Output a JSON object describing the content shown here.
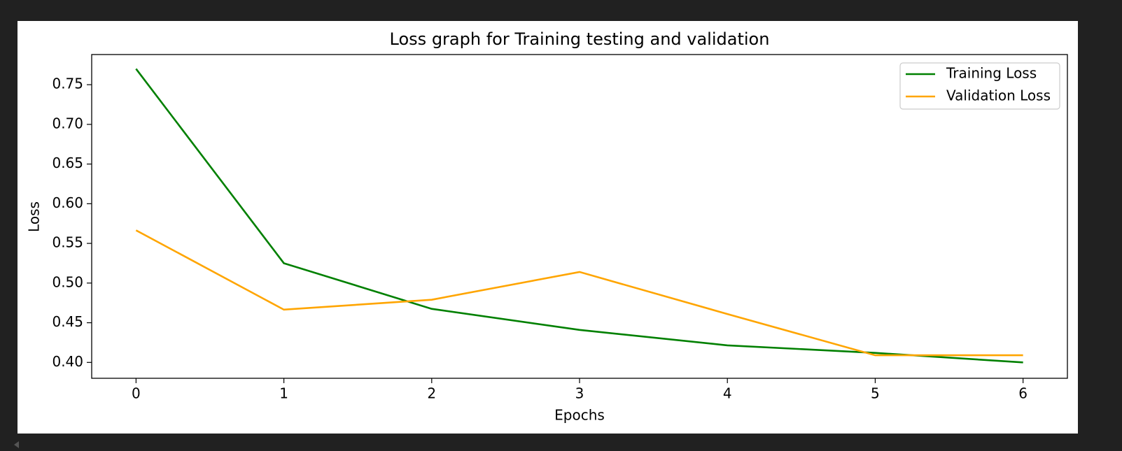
{
  "chart_data": {
    "type": "line",
    "title": "Loss graph for Training testing and validation",
    "xlabel": "Epochs",
    "ylabel": "Loss",
    "x": [
      0,
      1,
      2,
      3,
      4,
      5,
      6
    ],
    "series": [
      {
        "name": "Training Loss",
        "color": "#008000",
        "values": [
          0.77,
          0.525,
          0.4675,
          0.441,
          0.4215,
          0.412,
          0.4
        ]
      },
      {
        "name": "Validation Loss",
        "color": "#ffa500",
        "values": [
          0.5665,
          0.4665,
          0.479,
          0.514,
          0.461,
          0.409,
          0.409
        ]
      }
    ],
    "xlim": [
      -0.3,
      6.3
    ],
    "ylim": [
      0.38,
      0.788
    ],
    "xticks": [
      0,
      1,
      2,
      3,
      4,
      5,
      6
    ],
    "yticks": [
      {
        "value": 0.4,
        "label": "0.40"
      },
      0.45,
      {
        "value": 0.5,
        "label": "0.50"
      },
      0.55,
      {
        "value": 0.6,
        "label": "0.60"
      },
      0.65,
      {
        "value": 0.7,
        "label": "0.70"
      },
      0.75
    ],
    "legend": "upper right"
  }
}
